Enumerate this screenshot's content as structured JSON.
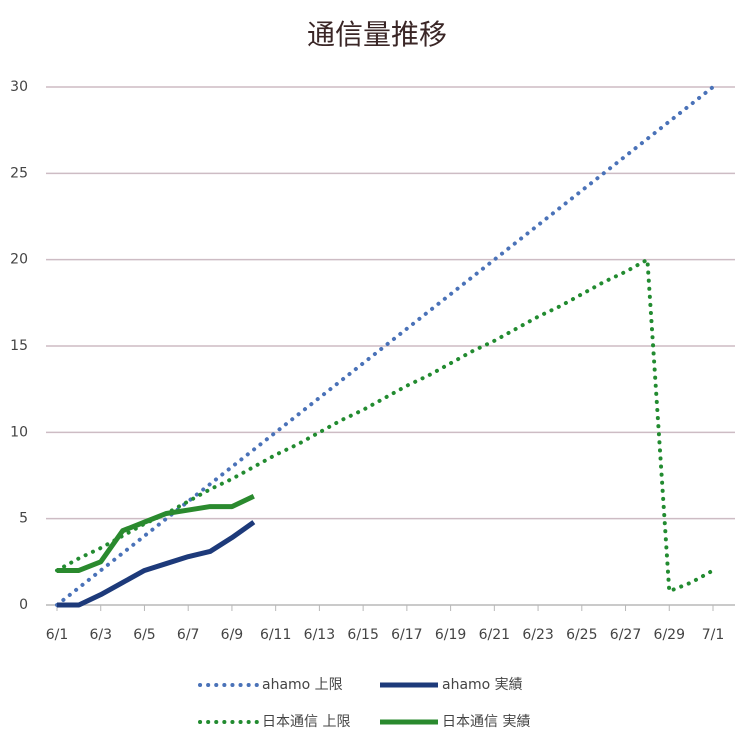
{
  "chart_data": {
    "type": "line",
    "title": "通信量推移",
    "categories": [
      "6/1",
      null,
      "6/3",
      null,
      "6/5",
      null,
      "6/7",
      null,
      "6/9",
      null,
      "6/11",
      null,
      "6/13",
      null,
      "6/15",
      null,
      "6/17",
      null,
      "6/19",
      null,
      "6/21",
      null,
      "6/23",
      null,
      "6/25",
      null,
      "6/27",
      null,
      "6/29",
      null,
      "7/1"
    ],
    "ylim": [
      0,
      30
    ],
    "yticks": [
      0,
      5,
      10,
      15,
      20,
      25,
      30
    ],
    "grid": true,
    "series": [
      {
        "name": "ahamo 上限",
        "color": "#4a72b8",
        "dotted": true,
        "values": [
          0,
          1,
          2,
          3,
          4,
          5,
          6,
          7,
          8,
          9,
          10,
          11,
          12,
          13,
          14,
          15,
          16,
          17,
          18,
          19,
          20,
          21,
          22,
          23,
          24,
          25,
          26,
          27,
          28,
          29,
          30
        ]
      },
      {
        "name": "ahamo 実績",
        "color": "#1d3a7a",
        "dotted": false,
        "values": [
          0,
          0,
          0.6,
          1.3,
          2,
          2.4,
          2.8,
          3.1,
          3.9,
          4.8,
          null,
          null,
          null,
          null,
          null,
          null,
          null,
          null,
          null,
          null,
          null,
          null,
          null,
          null,
          null,
          null,
          null,
          null,
          null,
          null,
          null
        ]
      },
      {
        "name": "日本通信 上限",
        "color": "#228b30",
        "dotted": true,
        "values": [
          2,
          2.7,
          3.3,
          4,
          4.7,
          5.3,
          6,
          6.7,
          7.3,
          8,
          8.7,
          9.3,
          10,
          10.7,
          11.3,
          12,
          12.7,
          13.3,
          14,
          14.7,
          15.3,
          16,
          16.7,
          17.3,
          18,
          18.7,
          19.3,
          20,
          0.8,
          1.3,
          2
        ]
      },
      {
        "name": "日本通信 実績",
        "color": "#2a8a2e",
        "dotted": false,
        "values": [
          2,
          2,
          2.5,
          4.3,
          4.8,
          5.3,
          5.5,
          5.7,
          5.7,
          6.3,
          null,
          null,
          null,
          null,
          null,
          null,
          null,
          null,
          null,
          null,
          null,
          null,
          null,
          null,
          null,
          null,
          null,
          null,
          null,
          null,
          null
        ]
      }
    ]
  }
}
